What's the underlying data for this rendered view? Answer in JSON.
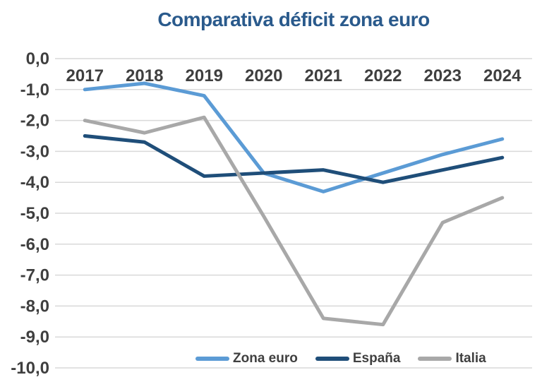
{
  "title": "Comparativa déficit zona euro",
  "colors": {
    "title": "#2A5A8C",
    "axis_text": "#3F3F3F",
    "gridline": "#D9D9D9",
    "legend_text": "#404040",
    "background": "#FFFFFF"
  },
  "chart_data": {
    "type": "line",
    "title": "Comparativa déficit zona euro",
    "categories": [
      "2017",
      "2018",
      "2019",
      "2020",
      "2021",
      "2022",
      "2023",
      "2024"
    ],
    "series": [
      {
        "name": "Zona euro",
        "color": "#5B9BD5",
        "values": [
          -1.0,
          -0.8,
          -1.2,
          -3.7,
          -4.3,
          -3.7,
          -3.1,
          -2.6
        ]
      },
      {
        "name": "España",
        "color": "#1F4E79",
        "values": [
          -2.5,
          -2.7,
          -3.8,
          -3.7,
          -3.6,
          -4.0,
          -3.6,
          -3.2
        ]
      },
      {
        "name": "Italia",
        "color": "#A8A8A8",
        "values": [
          -2.0,
          -2.4,
          -1.9,
          -5.1,
          -8.4,
          -8.6,
          -5.3,
          -4.5
        ]
      }
    ],
    "ylim": [
      0,
      -10
    ],
    "y_ticks": [
      "0,0",
      "-1,0",
      "-2,0",
      "-3,0",
      "-4,0",
      "-5,0",
      "-6,0",
      "-7,0",
      "-8,0",
      "-9,0",
      "-10,0"
    ],
    "xlabel": "",
    "ylabel": "",
    "grid": "horizontal",
    "legend_position": "bottom"
  }
}
